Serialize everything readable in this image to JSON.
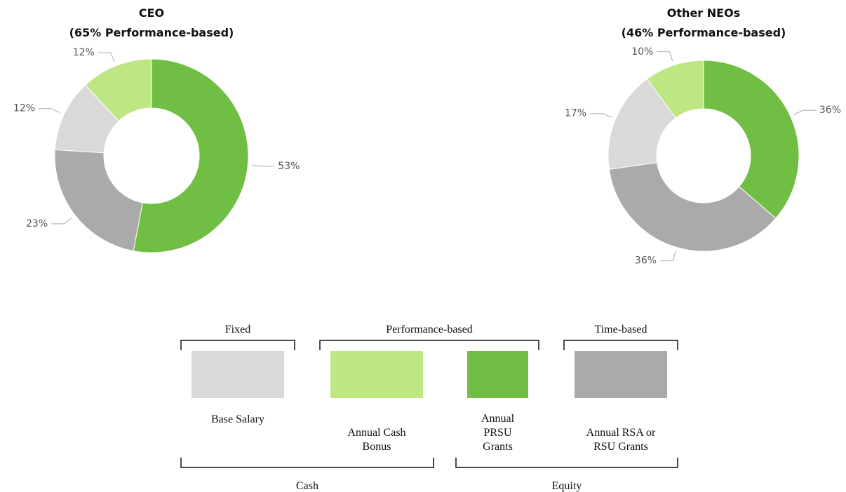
{
  "chart_data": [
    {
      "type": "donut",
      "title": "CEO",
      "subtitle": "(65% Performance-based)",
      "values": [
        53,
        23,
        12,
        12
      ],
      "value_labels": [
        "53%",
        "23%",
        "12%",
        "12%"
      ],
      "colors": [
        "#70bf44",
        "#aaaaaa",
        "#d9d9d9",
        "#bee784"
      ]
    },
    {
      "type": "donut",
      "title": "Other NEOs",
      "subtitle": "(46% Performance-based)",
      "values": [
        36,
        36,
        17,
        10
      ],
      "value_labels": [
        "36%",
        "36%",
        "17%",
        "10%"
      ],
      "colors": [
        "#70bf44",
        "#aaaaaa",
        "#d9d9d9",
        "#bee784"
      ]
    }
  ],
  "legend": {
    "groups": [
      "Fixed",
      "Performance-based",
      "Time-based"
    ],
    "items": [
      {
        "name": "Base Salary",
        "color": "#d9d9d9"
      },
      {
        "name": "Annual Cash Bonus",
        "color": "#bee784"
      },
      {
        "name": "Annual PRSU Grants",
        "color": "#70bf44"
      },
      {
        "name": "Annual RSA or RSU Grants",
        "color": "#aaaaaa"
      }
    ],
    "bottom_groups": [
      "Cash",
      "Equity"
    ]
  }
}
